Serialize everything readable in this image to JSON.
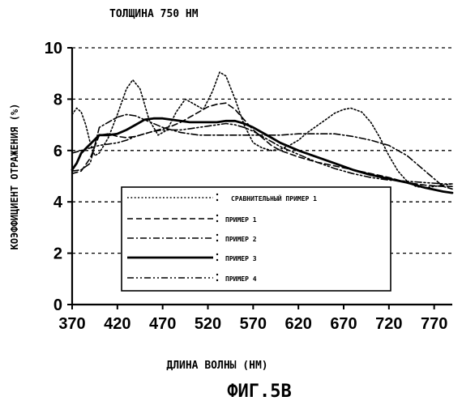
{
  "chart_data": {
    "type": "line",
    "title": "ТОЛЩИНА 750 НМ",
    "xlabel": "ДЛИНА ВОЛНЫ (НМ)",
    "ylabel": "КОЭФФИЦИЕНТ ОТРАЖЕНИЯ (%)",
    "figure_caption": "ФИГ.5B",
    "xlim": [
      370,
      790
    ],
    "ylim": [
      0,
      10
    ],
    "x_ticks": [
      370,
      420,
      470,
      520,
      570,
      620,
      670,
      720,
      770
    ],
    "y_ticks": [
      0,
      2,
      4,
      6,
      8,
      10
    ],
    "grid": "horizontal-dashed",
    "legend_position": "inside-bottom-center",
    "series": [
      {
        "name": "СРАВНИТЕЛЬНЫЙ ПРИМЕР 1",
        "style": "dotted",
        "x": [
          370,
          375,
          380,
          385,
          390,
          395,
          400,
          410,
          420,
          430,
          437,
          445,
          455,
          465,
          475,
          485,
          495,
          505,
          515,
          525,
          533,
          540,
          550,
          560,
          570,
          580,
          590,
          600,
          610,
          620,
          630,
          640,
          650,
          660,
          670,
          678,
          690,
          700,
          710,
          720,
          730,
          740,
          750,
          760,
          770,
          780,
          790
        ],
        "y": [
          7.4,
          7.65,
          7.5,
          7.0,
          6.3,
          5.8,
          5.9,
          6.5,
          7.4,
          8.4,
          8.75,
          8.4,
          7.2,
          6.6,
          6.8,
          7.5,
          8.0,
          7.8,
          7.6,
          8.3,
          9.05,
          8.9,
          8.0,
          7.0,
          6.3,
          6.1,
          6.0,
          6.05,
          6.2,
          6.4,
          6.7,
          6.95,
          7.2,
          7.45,
          7.6,
          7.65,
          7.5,
          7.1,
          6.5,
          5.8,
          5.2,
          4.8,
          4.6,
          4.55,
          4.6,
          4.65,
          4.7
        ]
      },
      {
        "name": "ПРИМЕР 1",
        "style": "dashed",
        "x": [
          370,
          380,
          390,
          400,
          410,
          420,
          430,
          440,
          450,
          460,
          470,
          480,
          490,
          500,
          510,
          520,
          530,
          540,
          550,
          560,
          570,
          580,
          590,
          600,
          620,
          640,
          660,
          680,
          700,
          720,
          740,
          760,
          780,
          790
        ],
        "y": [
          5.1,
          5.2,
          5.7,
          6.6,
          6.65,
          6.55,
          6.5,
          6.55,
          6.65,
          6.75,
          6.85,
          6.95,
          7.1,
          7.3,
          7.5,
          7.7,
          7.8,
          7.85,
          7.6,
          7.2,
          6.8,
          6.5,
          6.2,
          6.0,
          5.75,
          5.55,
          5.4,
          5.25,
          5.1,
          4.95,
          4.75,
          4.65,
          4.6,
          4.6
        ]
      },
      {
        "name": "ПРИМЕР 2",
        "style": "dash-dot",
        "x": [
          370,
          380,
          390,
          400,
          410,
          420,
          430,
          440,
          450,
          460,
          470,
          480,
          490,
          500,
          510,
          520,
          530,
          540,
          550,
          560,
          570,
          580,
          590,
          600,
          620,
          640,
          660,
          680,
          700,
          720,
          740,
          760,
          780,
          790
        ],
        "y": [
          5.2,
          5.25,
          5.5,
          6.9,
          7.1,
          7.3,
          7.4,
          7.35,
          7.2,
          7.05,
          6.9,
          6.8,
          6.7,
          6.65,
          6.6,
          6.6,
          6.6,
          6.6,
          6.6,
          6.6,
          6.6,
          6.6,
          6.6,
          6.6,
          6.65,
          6.65,
          6.65,
          6.55,
          6.4,
          6.2,
          5.8,
          5.2,
          4.6,
          4.5
        ]
      },
      {
        "name": "ПРИМЕР 3",
        "style": "solid-thick",
        "x": [
          370,
          375,
          380,
          390,
          400,
          410,
          420,
          430,
          440,
          450,
          460,
          470,
          480,
          490,
          500,
          510,
          520,
          530,
          540,
          550,
          560,
          570,
          580,
          590,
          600,
          620,
          640,
          660,
          680,
          700,
          720,
          740,
          760,
          780,
          790
        ],
        "y": [
          5.25,
          5.5,
          5.9,
          6.25,
          6.6,
          6.6,
          6.65,
          6.8,
          7.0,
          7.2,
          7.25,
          7.25,
          7.2,
          7.15,
          7.1,
          7.1,
          7.1,
          7.1,
          7.15,
          7.15,
          7.05,
          6.9,
          6.7,
          6.5,
          6.3,
          6.0,
          5.75,
          5.5,
          5.25,
          5.05,
          4.9,
          4.75,
          4.55,
          4.4,
          4.35
        ]
      },
      {
        "name": "ПРИМЕР 4",
        "style": "dash-dot-dot",
        "x": [
          370,
          380,
          390,
          400,
          410,
          420,
          430,
          440,
          450,
          460,
          470,
          480,
          490,
          500,
          510,
          520,
          530,
          540,
          550,
          560,
          570,
          580,
          590,
          600,
          620,
          640,
          660,
          680,
          700,
          720,
          740,
          760,
          780,
          790
        ],
        "y": [
          5.9,
          6.0,
          6.1,
          6.2,
          6.25,
          6.3,
          6.4,
          6.55,
          6.65,
          6.75,
          6.8,
          6.8,
          6.8,
          6.85,
          6.9,
          6.95,
          7.0,
          7.05,
          7.0,
          6.9,
          6.75,
          6.55,
          6.35,
          6.15,
          5.85,
          5.55,
          5.3,
          5.1,
          4.95,
          4.85,
          4.8,
          4.75,
          4.7,
          4.7
        ]
      }
    ]
  }
}
